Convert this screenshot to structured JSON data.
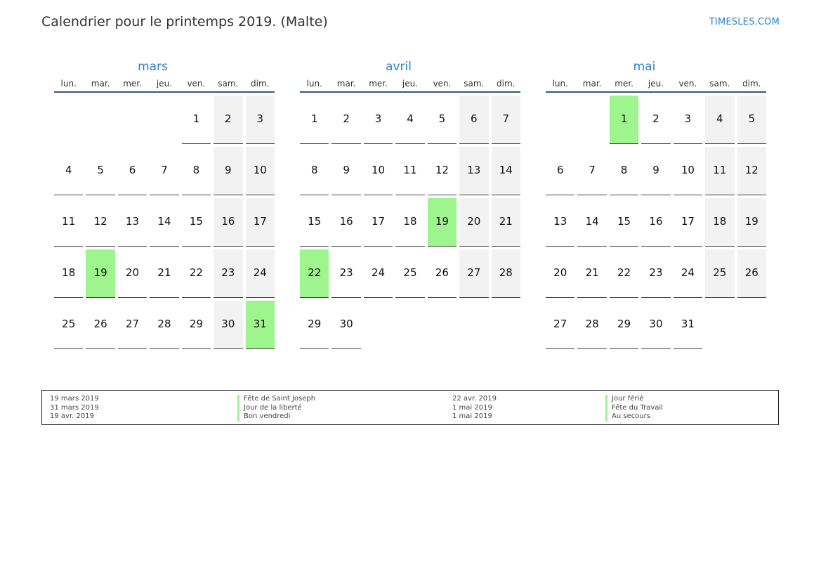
{
  "header": {
    "title": "Calendrier pour le printemps 2019. (Malte)",
    "site": "TIMESLES.COM"
  },
  "weekdays": [
    "lun.",
    "mar.",
    "mer.",
    "jeu.",
    "ven.",
    "sam.",
    "dim."
  ],
  "months": [
    {
      "name": "mars",
      "offset": 4,
      "days": 31,
      "holidays": [
        19,
        31
      ]
    },
    {
      "name": "avril",
      "offset": 0,
      "days": 30,
      "holidays": [
        19,
        22
      ]
    },
    {
      "name": "mai",
      "offset": 2,
      "days": 31,
      "holidays": [
        1
      ]
    }
  ],
  "colors": {
    "holiday": "#9ef58e",
    "weekend": "#f2f2f2",
    "accent": "#2f7fc1",
    "rule": "#3a5779"
  },
  "legend": {
    "left": [
      {
        "date": "19 mars 2019",
        "name": "Fête de Saint Joseph"
      },
      {
        "date": "31 mars 2019",
        "name": "Jour de la liberté"
      },
      {
        "date": "19 avr. 2019",
        "name": "Bon vendredi"
      }
    ],
    "right": [
      {
        "date": "22 avr. 2019",
        "name": "Jour férié"
      },
      {
        "date": "1 mai 2019",
        "name": "Fête du Travail"
      },
      {
        "date": "1 mai 2019",
        "name": "Au secours"
      }
    ]
  }
}
